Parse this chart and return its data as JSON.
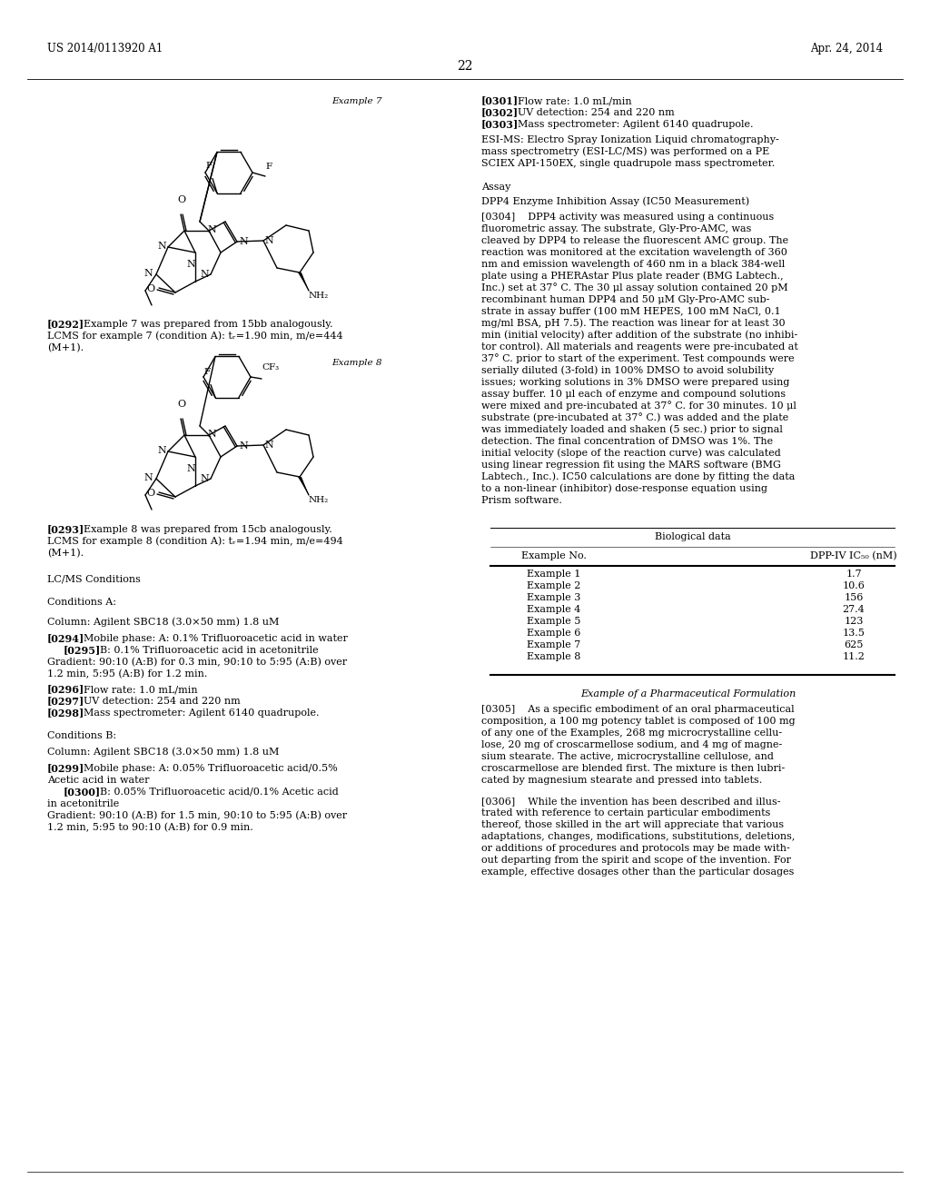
{
  "page_number": "22",
  "patent_number": "US 2014/0113920 A1",
  "patent_date": "Apr. 24, 2014",
  "background_color": "#ffffff",
  "example7_label": "Example 7",
  "example8_label": "Example 8",
  "lcms_header": "LC/MS Conditions",
  "conditions_a_header": "Conditions A:",
  "column_a": "Column: Agilent SBC18 (3.0×50 mm) 1.8 uM",
  "para0294": "[0294]    Mobile phase: A: 0.1% Trifluoroacetic acid in water",
  "para0295": "    [0295]    B: 0.1% Trifluoroacetic acid in acetonitrile",
  "para0296": "[0296]    Flow rate: 1.0 mL/min",
  "para0297": "[0297]    UV detection: 254 and 220 nm",
  "para0298": "[0298]    Mass spectrometer: Agilent 6140 quadrupole.",
  "conditions_b_header": "Conditions B:",
  "column_b": "Column: Agilent SBC18 (3.0×50 mm) 1.8 uM",
  "para0299": "[0299]    Mobile phase: A: 0.05% Trifluoroacetic acid/0.5%",
  "para0299b": "Acetic acid in water",
  "para0300": "    [0300]    B: 0.05% Trifluoroacetic acid/0.1% Acetic acid",
  "para0300b": "in acetonitrile",
  "right_para0301": "[0301]    Flow rate: 1.0 mL/min",
  "right_para0302": "[0302]    UV detection: 254 and 220 nm",
  "right_para0303": "[0303]    Mass spectrometer: Agilent 6140 quadrupole.",
  "assay_header": "Assay",
  "dpp4_header": "DPP4 Enzyme Inhibition Assay (IC50 Measurement)",
  "bio_table_header": "Biological data",
  "bio_table_col1": "Example No.",
  "bio_table_col2": "DPP-IV IC₅₀ (nM)",
  "bio_examples": [
    "Example 1",
    "Example 2",
    "Example 3",
    "Example 4",
    "Example 5",
    "Example 6",
    "Example 7",
    "Example 8"
  ],
  "bio_values": [
    "1.7",
    "10.6",
    "156",
    "27.4",
    "123",
    "13.5",
    "625",
    "11.2"
  ],
  "pharma_header": "Example of a Pharmaceutical Formulation"
}
